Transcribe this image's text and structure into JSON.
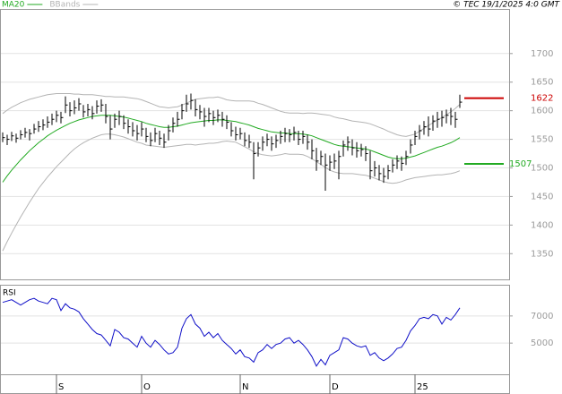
{
  "chart_data": [
    {
      "type": "ohlc",
      "source": "© TEC 19/1/2025 4:0 GMT",
      "xlim": [
        -0.6,
        113
      ],
      "xticks": [
        {
          "value": 12,
          "label": "S"
        },
        {
          "value": 31,
          "label": "O"
        },
        {
          "value": 53,
          "label": "N"
        },
        {
          "value": 73,
          "label": "D"
        },
        {
          "value": 92,
          "label": "25"
        }
      ],
      "ylim": [
        1305,
        1778
      ],
      "yticks": [
        1350,
        1400,
        1450,
        1500,
        1550,
        1600,
        1650,
        1700
      ],
      "grid": true,
      "color": "#000000",
      "high": [
        1562,
        1558,
        1563,
        1560,
        1566,
        1570,
        1568,
        1577,
        1582,
        1585,
        1590,
        1595,
        1600,
        1598,
        1625,
        1615,
        1618,
        1622,
        1610,
        1612,
        1608,
        1618,
        1620,
        1612,
        1592,
        1595,
        1600,
        1592,
        1585,
        1580,
        1575,
        1580,
        1570,
        1562,
        1570,
        1565,
        1560,
        1575,
        1588,
        1598,
        1612,
        1628,
        1630,
        1620,
        1610,
        1605,
        1605,
        1600,
        1602,
        1598,
        1592,
        1580,
        1572,
        1570,
        1562,
        1558,
        1545,
        1545,
        1555,
        1560,
        1555,
        1558,
        1565,
        1570,
        1568,
        1572,
        1565,
        1565,
        1558,
        1550,
        1535,
        1530,
        1525,
        1522,
        1525,
        1530,
        1548,
        1555,
        1550,
        1545,
        1542,
        1538,
        1530,
        1512,
        1505,
        1500,
        1505,
        1515,
        1522,
        1520,
        1530,
        1550,
        1565,
        1575,
        1582,
        1590,
        1592,
        1598,
        1600,
        1602,
        1605,
        1598,
        1628
      ],
      "low": [
        1545,
        1540,
        1547,
        1544,
        1550,
        1553,
        1548,
        1560,
        1563,
        1566,
        1570,
        1575,
        1580,
        1578,
        1596,
        1590,
        1594,
        1600,
        1588,
        1590,
        1585,
        1595,
        1598,
        1578,
        1550,
        1570,
        1575,
        1568,
        1560,
        1555,
        1548,
        1555,
        1545,
        1538,
        1545,
        1540,
        1535,
        1548,
        1562,
        1572,
        1585,
        1598,
        1602,
        1590,
        1585,
        1572,
        1580,
        1575,
        1580,
        1572,
        1568,
        1555,
        1548,
        1550,
        1538,
        1535,
        1480,
        1520,
        1530,
        1538,
        1530,
        1535,
        1542,
        1545,
        1545,
        1548,
        1540,
        1542,
        1532,
        1515,
        1495,
        1505,
        1460,
        1495,
        1498,
        1480,
        1520,
        1530,
        1522,
        1518,
        1520,
        1512,
        1480,
        1485,
        1478,
        1474,
        1480,
        1492,
        1498,
        1495,
        1505,
        1525,
        1540,
        1550,
        1558,
        1555,
        1565,
        1570,
        1572,
        1578,
        1575,
        1570,
        1605
      ],
      "close": [
        1553,
        1550,
        1556,
        1552,
        1558,
        1562,
        1560,
        1568,
        1572,
        1575,
        1580,
        1585,
        1592,
        1588,
        1610,
        1600,
        1605,
        1612,
        1598,
        1602,
        1595,
        1608,
        1610,
        1590,
        1568,
        1585,
        1590,
        1578,
        1572,
        1565,
        1560,
        1568,
        1555,
        1548,
        1560,
        1552,
        1545,
        1565,
        1578,
        1585,
        1600,
        1612,
        1618,
        1602,
        1598,
        1590,
        1595,
        1588,
        1592,
        1585,
        1580,
        1565,
        1558,
        1560,
        1548,
        1545,
        1525,
        1535,
        1545,
        1550,
        1542,
        1548,
        1555,
        1560,
        1558,
        1562,
        1550,
        1555,
        1545,
        1530,
        1512,
        1520,
        1505,
        1510,
        1512,
        1520,
        1540,
        1545,
        1535,
        1530,
        1532,
        1525,
        1495,
        1500,
        1490,
        1485,
        1495,
        1505,
        1512,
        1508,
        1520,
        1540,
        1555,
        1565,
        1572,
        1568,
        1582,
        1585,
        1588,
        1592,
        1590,
        1585,
        1615
      ],
      "series": [
        {
          "name": "MA20",
          "color": "#22aa22",
          "values": [
            1475,
            1486,
            1496,
            1505,
            1514,
            1522,
            1530,
            1537,
            1544,
            1550,
            1556,
            1561,
            1566,
            1570,
            1574,
            1578,
            1581,
            1584,
            1586,
            1588,
            1590,
            1591,
            1592,
            1592,
            1592,
            1591,
            1590,
            1589,
            1587,
            1585,
            1583,
            1581,
            1578,
            1576,
            1574,
            1572,
            1571,
            1571,
            1572,
            1573,
            1575,
            1577,
            1579,
            1580,
            1581,
            1582,
            1583,
            1583,
            1584,
            1584,
            1583,
            1582,
            1581,
            1579,
            1577,
            1575,
            1572,
            1569,
            1567,
            1565,
            1563,
            1562,
            1561,
            1561,
            1560,
            1560,
            1560,
            1559,
            1558,
            1556,
            1553,
            1550,
            1547,
            1544,
            1541,
            1539,
            1538,
            1537,
            1536,
            1535,
            1534,
            1533,
            1531,
            1528,
            1525,
            1522,
            1519,
            1517,
            1516,
            1516,
            1517,
            1519,
            1521,
            1524,
            1527,
            1530,
            1533,
            1536,
            1538,
            1541,
            1544,
            1548,
            1553
          ]
        },
        {
          "name": "BBands",
          "color": "#b4b4b4",
          "upper": [
            1595,
            1601,
            1606,
            1610,
            1614,
            1617,
            1620,
            1622,
            1624,
            1626,
            1628,
            1629,
            1630,
            1630,
            1630,
            1630,
            1629,
            1629,
            1628,
            1628,
            1628,
            1627,
            1626,
            1625,
            1625,
            1624,
            1624,
            1624,
            1623,
            1622,
            1621,
            1619,
            1616,
            1613,
            1610,
            1607,
            1606,
            1605,
            1606,
            1607,
            1610,
            1613,
            1617,
            1620,
            1621,
            1622,
            1623,
            1623,
            1624,
            1622,
            1619,
            1618,
            1617,
            1617,
            1617,
            1617,
            1616,
            1613,
            1611,
            1608,
            1605,
            1602,
            1599,
            1597,
            1596,
            1596,
            1596,
            1595,
            1596,
            1596,
            1595,
            1594,
            1593,
            1592,
            1589,
            1587,
            1586,
            1584,
            1582,
            1581,
            1580,
            1579,
            1577,
            1574,
            1571,
            1568,
            1564,
            1561,
            1558,
            1556,
            1555,
            1557,
            1559,
            1564,
            1569,
            1574,
            1579,
            1584,
            1588,
            1593,
            1598,
            1604,
            1611
          ],
          "lower": [
            1355,
            1371,
            1386,
            1400,
            1414,
            1427,
            1440,
            1452,
            1464,
            1474,
            1484,
            1493,
            1502,
            1510,
            1518,
            1526,
            1533,
            1539,
            1544,
            1548,
            1552,
            1555,
            1558,
            1559,
            1559,
            1558,
            1556,
            1554,
            1551,
            1548,
            1545,
            1543,
            1540,
            1539,
            1538,
            1537,
            1536,
            1537,
            1538,
            1539,
            1540,
            1541,
            1541,
            1540,
            1541,
            1542,
            1543,
            1543,
            1544,
            1546,
            1547,
            1546,
            1545,
            1541,
            1537,
            1533,
            1528,
            1525,
            1523,
            1522,
            1521,
            1522,
            1523,
            1525,
            1524,
            1524,
            1524,
            1523,
            1520,
            1516,
            1511,
            1506,
            1501,
            1496,
            1493,
            1491,
            1490,
            1490,
            1490,
            1489,
            1488,
            1487,
            1485,
            1482,
            1479,
            1476,
            1474,
            1473,
            1474,
            1476,
            1479,
            1481,
            1483,
            1484,
            1485,
            1486,
            1487,
            1488,
            1488,
            1489,
            1490,
            1492,
            1495
          ]
        }
      ],
      "markers": [
        {
          "value": 1622,
          "color": "#cc0000"
        },
        {
          "value": 1507,
          "color": "#22aa22"
        }
      ]
    },
    {
      "type": "line",
      "title": "RSI",
      "ylim": [
        2700,
        9300
      ],
      "yticks": [
        5000,
        7000
      ],
      "color": "#1010c8",
      "values": [
        8000,
        8100,
        8200,
        8000,
        7800,
        8000,
        8200,
        8300,
        8100,
        8000,
        7900,
        8300,
        8200,
        7400,
        7900,
        7600,
        7500,
        7300,
        6800,
        6400,
        6000,
        5700,
        5600,
        5200,
        4800,
        6000,
        5800,
        5400,
        5300,
        5000,
        4700,
        5500,
        5000,
        4700,
        5200,
        4900,
        4500,
        4200,
        4300,
        4700,
        6100,
        6800,
        7100,
        6400,
        6100,
        5500,
        5800,
        5400,
        5700,
        5200,
        4900,
        4600,
        4200,
        4500,
        4000,
        3900,
        3600,
        4300,
        4500,
        4900,
        4600,
        4900,
        5000,
        5300,
        5400,
        5000,
        5200,
        4900,
        4500,
        4000,
        3300,
        3800,
        3400,
        4100,
        4300,
        4500,
        5400,
        5300,
        5000,
        4800,
        4700,
        4800,
        4100,
        4300,
        3900,
        3700,
        3900,
        4200,
        4600,
        4700,
        5200,
        5900,
        6300,
        6800,
        6900,
        6800,
        7100,
        7000,
        6400,
        6900,
        6700,
        7100,
        7600
      ]
    }
  ]
}
